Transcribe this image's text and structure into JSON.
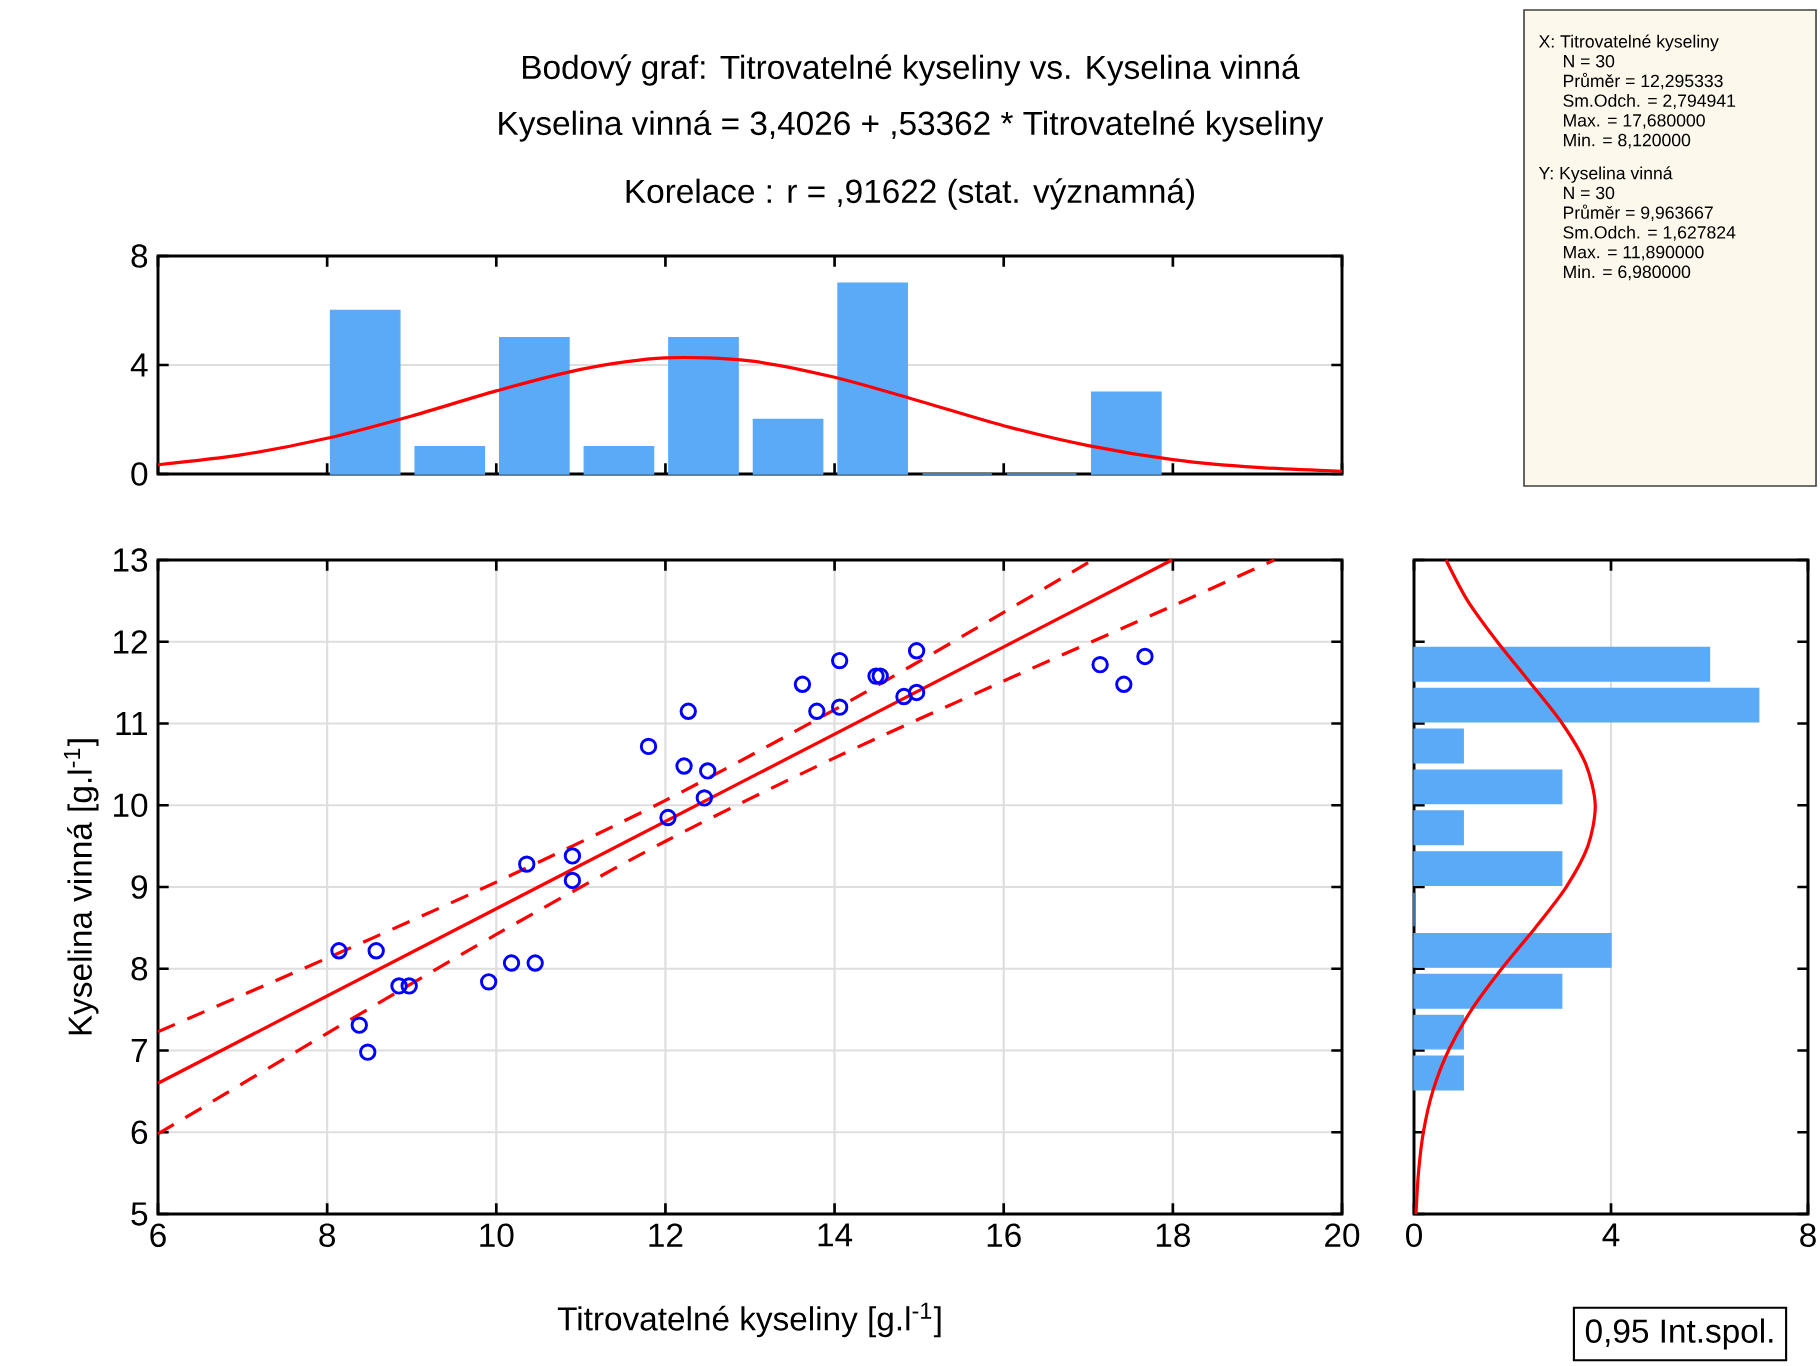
{
  "chart_data": [
    {
      "type": "histogram",
      "title": "Bodový graf: Titrovatelné kyseliny vs. Kyselina vinná",
      "subtitle": "Kyselina vinná = 3,4026 + ,53362 * Titrovatelné kyseliny",
      "annotations": [
        "Korelace :   r = ,91622 (stat. významná)"
      ],
      "xlim": [
        6,
        20
      ],
      "ylim": [
        0,
        8
      ],
      "xticks": [
        6,
        8,
        10,
        12,
        14,
        16,
        18,
        20
      ],
      "yticks": [
        0,
        4,
        8
      ],
      "tick_labels": "y",
      "grid": "y",
      "series": [
        {
          "bins": [
            8,
            9,
            10,
            11,
            12,
            13,
            14,
            15,
            16,
            17,
            18
          ],
          "values": [
            6,
            1,
            5,
            1,
            5,
            2,
            7,
            0,
            0,
            3
          ],
          "color": "#5aaaf8"
        },
        {
          "type": "line",
          "color": "#ff0000",
          "x": [
            6,
            7,
            8,
            9,
            10,
            11,
            12,
            13,
            14,
            15,
            16,
            17,
            18,
            19,
            20
          ],
          "values": [
            0.34,
            0.71,
            1.31,
            2.13,
            3.05,
            3.84,
            4.26,
            4.15,
            3.55,
            2.68,
            1.77,
            1.04,
            0.53,
            0.24,
            0.1
          ]
        }
      ]
    },
    {
      "type": "scatter",
      "xlabel": "Titrovatelné kyseliny [g.l$^{-1}$]",
      "ylabel": "Kyselina vinná [g.l$^{-1}$]",
      "annotations": [
        "0,95 Int.spol."
      ],
      "xlim": [
        6,
        20
      ],
      "ylim": [
        5,
        13
      ],
      "xticks": [
        6,
        8,
        10,
        12,
        14,
        16,
        18,
        20
      ],
      "yticks": [
        5,
        6,
        7,
        8,
        9,
        10,
        11,
        12,
        13
      ],
      "grid": true,
      "series": [
        {
          "color": "#0000ff",
          "marker": "circle",
          "x": [
            8.14,
            8.58,
            8.38,
            8.48,
            8.85,
            8.97,
            9.91,
            10.18,
            10.46,
            10.36,
            10.9,
            10.9,
            12.03,
            12.46,
            12.5,
            12.22,
            11.8,
            12.27,
            13.62,
            13.79,
            14.06,
            14.06,
            14.49,
            14.54,
            14.82,
            14.97,
            14.97,
            17.14,
            17.42,
            17.67
          ],
          "values": [
            8.22,
            8.22,
            7.31,
            6.98,
            7.79,
            7.79,
            7.84,
            8.07,
            8.07,
            9.28,
            9.38,
            9.08,
            9.85,
            10.09,
            10.42,
            10.48,
            10.72,
            11.15,
            11.48,
            11.15,
            11.77,
            11.2,
            11.58,
            11.58,
            11.33,
            11.38,
            11.89,
            11.72,
            11.48,
            11.82
          ]
        },
        {
          "type": "line",
          "color": "#ff0000",
          "x": [
            6,
            17.99
          ],
          "values": [
            6.6,
            13.0
          ]
        },
        {
          "type": "line",
          "color": "#ff0000",
          "line_style": "dashed",
          "x": [
            6,
            8,
            10,
            12,
            14,
            16,
            17.05
          ],
          "values": [
            7.23,
            8.13,
            9.06,
            10.06,
            11.17,
            12.36,
            13.0
          ]
        },
        {
          "type": "line",
          "color": "#ff0000",
          "line_style": "dashed",
          "x": [
            6,
            8,
            10,
            12,
            14,
            16,
            18,
            19.2
          ],
          "values": [
            5.98,
            7.21,
            8.42,
            9.56,
            10.58,
            11.52,
            12.44,
            13.0
          ]
        }
      ]
    },
    {
      "type": "histogram",
      "orientation": "horizontal",
      "xlim": [
        0,
        8
      ],
      "ylim": [
        5,
        13
      ],
      "xticks": [
        0,
        4,
        8
      ],
      "yticks": [
        5,
        6,
        7,
        8,
        9,
        10,
        11,
        12,
        13
      ],
      "tick_labels": "x",
      "grid": "x",
      "series": [
        {
          "bins": [
            6.5,
            7,
            7.5,
            8,
            8.5,
            9,
            9.5,
            10,
            10.5,
            11,
            11.5,
            12
          ],
          "values": [
            1,
            1,
            3,
            4,
            0,
            3,
            1,
            3,
            1,
            7,
            6
          ],
          "color": "#5aaaf8"
        },
        {
          "type": "line",
          "color": "#ff0000",
          "x": [
            5,
            5.5,
            6,
            6.5,
            7,
            7.5,
            8,
            8.5,
            9,
            9.5,
            10,
            10.5,
            11,
            11.5,
            12,
            12.5,
            13
          ],
          "values": [
            0.04,
            0.09,
            0.19,
            0.38,
            0.7,
            1.17,
            1.78,
            2.46,
            3.09,
            3.53,
            3.68,
            3.49,
            3.01,
            2.36,
            1.69,
            1.09,
            0.65
          ]
        }
      ]
    },
    {
      "type": "other",
      "annotations": [
        "X:  Titrovatelné kyseliny",
        "N = 30",
        "Průměr = 12,295333",
        "Sm.Odch. = 2,794941",
        "Max. = 17,680000",
        "Min. = 8,120000",
        "Y:  Kyselina vinná",
        "N = 30",
        "Průměr = 9,963667",
        "Sm.Odch. = 1,627824",
        "Max. = 11,890000",
        "Min. = 6,980000"
      ]
    }
  ]
}
